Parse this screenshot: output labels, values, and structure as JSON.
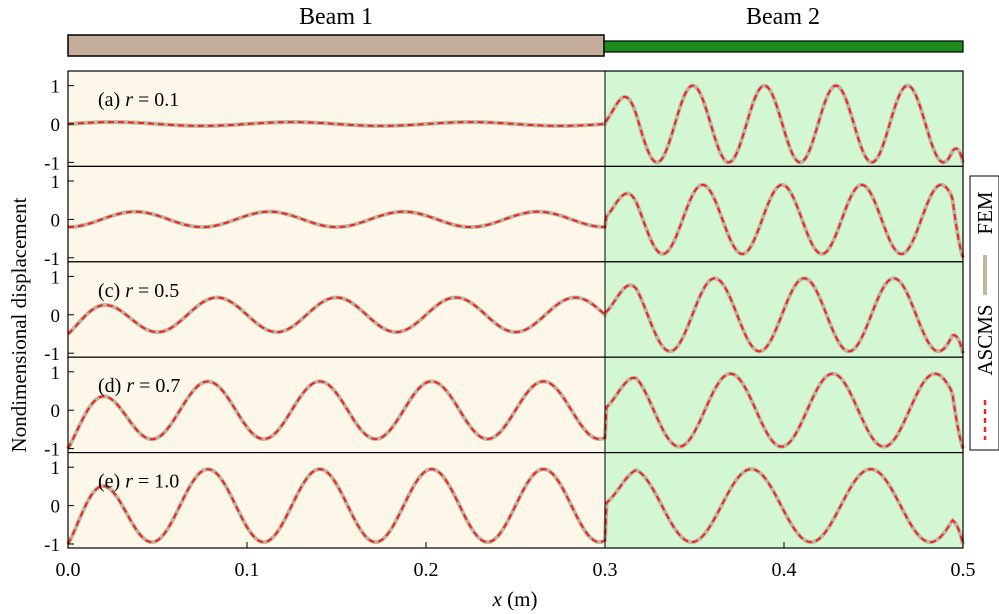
{
  "chart_data": {
    "type": "line",
    "xlabel_var": "x",
    "xlabel_unit": " (m)",
    "ylabel": "Nondimensional displacement",
    "xlim": [
      0.0,
      0.5
    ],
    "ylim": [
      -1,
      1.25
    ],
    "x_ticks": [
      "0.0",
      "0.1",
      "0.2",
      "0.3",
      "0.4",
      "0.5"
    ],
    "y_ticks": [
      "1",
      "0",
      "-1"
    ],
    "beams": [
      {
        "label": "Beam 1",
        "x_range": [
          0.0,
          0.3
        ],
        "color": "#c4ad9a",
        "bg": "#fdf7ea"
      },
      {
        "label": "Beam 2",
        "x_range": [
          0.3,
          0.5
        ],
        "color": "#1d8a1d",
        "bg": "#d3f7d3"
      }
    ],
    "legend": {
      "position": "right",
      "entries": [
        {
          "label": "FEM",
          "color": "#c4b49c",
          "style": "solid"
        },
        {
          "label": "ASCMS",
          "color": "#e8262a",
          "style": "dashed"
        }
      ]
    },
    "panels": [
      {
        "label_prefix": "(a) ",
        "label_var": "r",
        "label_value": " = 0.1",
        "beam1_amplitude": 0.05,
        "beam1_cycles": 3.0,
        "beam1_start": 0.0,
        "beam2_cycles": 5.0,
        "beam2_amplitude": 1.0
      },
      {
        "label_prefix": "",
        "label_var": "",
        "label_value": "",
        "beam1_amplitude": 0.2,
        "beam1_cycles": 4.0,
        "beam1_start": -0.2,
        "beam2_cycles": 4.5,
        "beam2_amplitude": 0.9
      },
      {
        "label_prefix": "(c) ",
        "label_var": "r",
        "label_value": " = 0.5",
        "beam1_amplitude": 0.45,
        "beam1_cycles": 4.5,
        "beam1_start": -0.5,
        "beam2_cycles": 4.0,
        "beam2_amplitude": 0.95
      },
      {
        "label_prefix": "(d) ",
        "label_var": "r",
        "label_value": " = 0.7",
        "beam1_amplitude": 0.75,
        "beam1_cycles": 4.8,
        "beam1_start": -1.0,
        "beam2_cycles": 3.5,
        "beam2_amplitude": 0.95
      },
      {
        "label_prefix": "(e) ",
        "label_var": "r",
        "label_value": " = 1.0",
        "beam1_amplitude": 0.95,
        "beam1_cycles": 4.8,
        "beam1_start": -1.0,
        "beam2_cycles": 3.0,
        "beam2_amplitude": 0.95
      }
    ]
  }
}
